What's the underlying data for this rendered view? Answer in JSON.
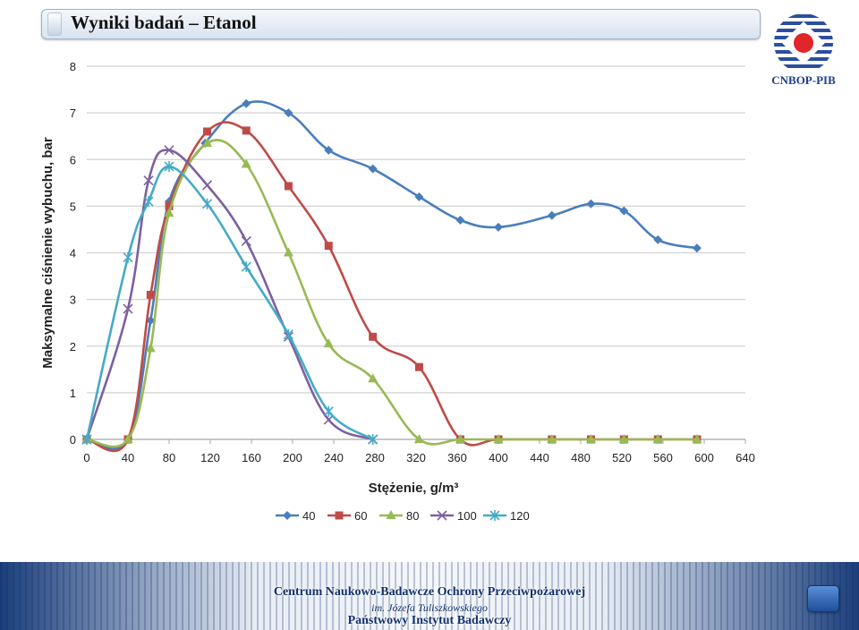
{
  "slide": {
    "title": "Wyniki badań – Etanol",
    "logo_caption": "CNBOP-PIB",
    "footer": {
      "line1": "Centrum Naukowo-Badawcze Ochrony Przeciwpożarowej",
      "line2": "im. Józefa Tuliszkowskiego",
      "line3": "Państwowy Instytut Badawczy"
    }
  },
  "chart_data": {
    "type": "line",
    "title": "",
    "xlabel": "Stężenie, g/m³",
    "ylabel": "Maksymalne ciśnienie wybuchu, bar",
    "xlim": [
      0,
      640
    ],
    "ylim": [
      0,
      8
    ],
    "xticks": [
      "0",
      "40",
      "80",
      "120",
      "160",
      "200",
      "240",
      "280",
      "320",
      "360",
      "400",
      "440",
      "480",
      "520",
      "560",
      "600",
      "640"
    ],
    "yticks": [
      "0",
      "1",
      "2",
      "3",
      "4",
      "5",
      "6",
      "7",
      "8"
    ],
    "grid": true,
    "legend": "bottom",
    "series": [
      {
        "name": "40",
        "color": "#4a7ebb",
        "marker": "diamond",
        "points": [
          [
            0,
            0
          ],
          [
            40,
            0
          ],
          [
            62,
            2.55
          ],
          [
            80,
            5.1
          ],
          [
            115,
            6.35
          ],
          [
            155,
            7.2
          ],
          [
            196,
            7.0
          ],
          [
            235,
            6.2
          ],
          [
            278,
            5.8
          ],
          [
            323,
            5.2
          ],
          [
            363,
            4.7
          ],
          [
            400,
            4.55
          ],
          [
            452,
            4.8
          ],
          [
            490,
            5.05
          ],
          [
            522,
            4.9
          ],
          [
            555,
            4.28
          ],
          [
            593,
            4.1
          ]
        ]
      },
      {
        "name": "60",
        "color": "#be4b48",
        "marker": "square",
        "points": [
          [
            0,
            0
          ],
          [
            40,
            0
          ],
          [
            62,
            3.1
          ],
          [
            80,
            5.0
          ],
          [
            117,
            6.6
          ],
          [
            155,
            6.62
          ],
          [
            196,
            5.43
          ],
          [
            235,
            4.15
          ],
          [
            278,
            2.2
          ],
          [
            323,
            1.55
          ],
          [
            363,
            0
          ],
          [
            400,
            0
          ],
          [
            452,
            0
          ],
          [
            490,
            0
          ],
          [
            522,
            0
          ],
          [
            555,
            0
          ],
          [
            593,
            0
          ]
        ]
      },
      {
        "name": "80",
        "color": "#98b954",
        "marker": "triangle",
        "points": [
          [
            0,
            0
          ],
          [
            40,
            0
          ],
          [
            62,
            1.95
          ],
          [
            80,
            4.85
          ],
          [
            117,
            6.35
          ],
          [
            155,
            5.9
          ],
          [
            196,
            4.0
          ],
          [
            235,
            2.05
          ],
          [
            278,
            1.3
          ],
          [
            323,
            0
          ],
          [
            363,
            0
          ],
          [
            400,
            0
          ],
          [
            452,
            0
          ],
          [
            490,
            0
          ],
          [
            522,
            0
          ],
          [
            555,
            0
          ],
          [
            593,
            0
          ]
        ]
      },
      {
        "name": "100",
        "color": "#7d60a0",
        "marker": "x",
        "points": [
          [
            0,
            0
          ],
          [
            40,
            2.8
          ],
          [
            60,
            5.55
          ],
          [
            80,
            6.2
          ],
          [
            117,
            5.45
          ],
          [
            155,
            4.25
          ],
          [
            196,
            2.2
          ],
          [
            235,
            0.42
          ],
          [
            278,
            0
          ]
        ]
      },
      {
        "name": "120",
        "color": "#46aac5",
        "marker": "asterisk",
        "points": [
          [
            0,
            0
          ],
          [
            40,
            3.9
          ],
          [
            60,
            5.1
          ],
          [
            80,
            5.85
          ],
          [
            117,
            5.05
          ],
          [
            155,
            3.7
          ],
          [
            196,
            2.25
          ],
          [
            235,
            0.6
          ],
          [
            278,
            0
          ]
        ]
      }
    ]
  }
}
